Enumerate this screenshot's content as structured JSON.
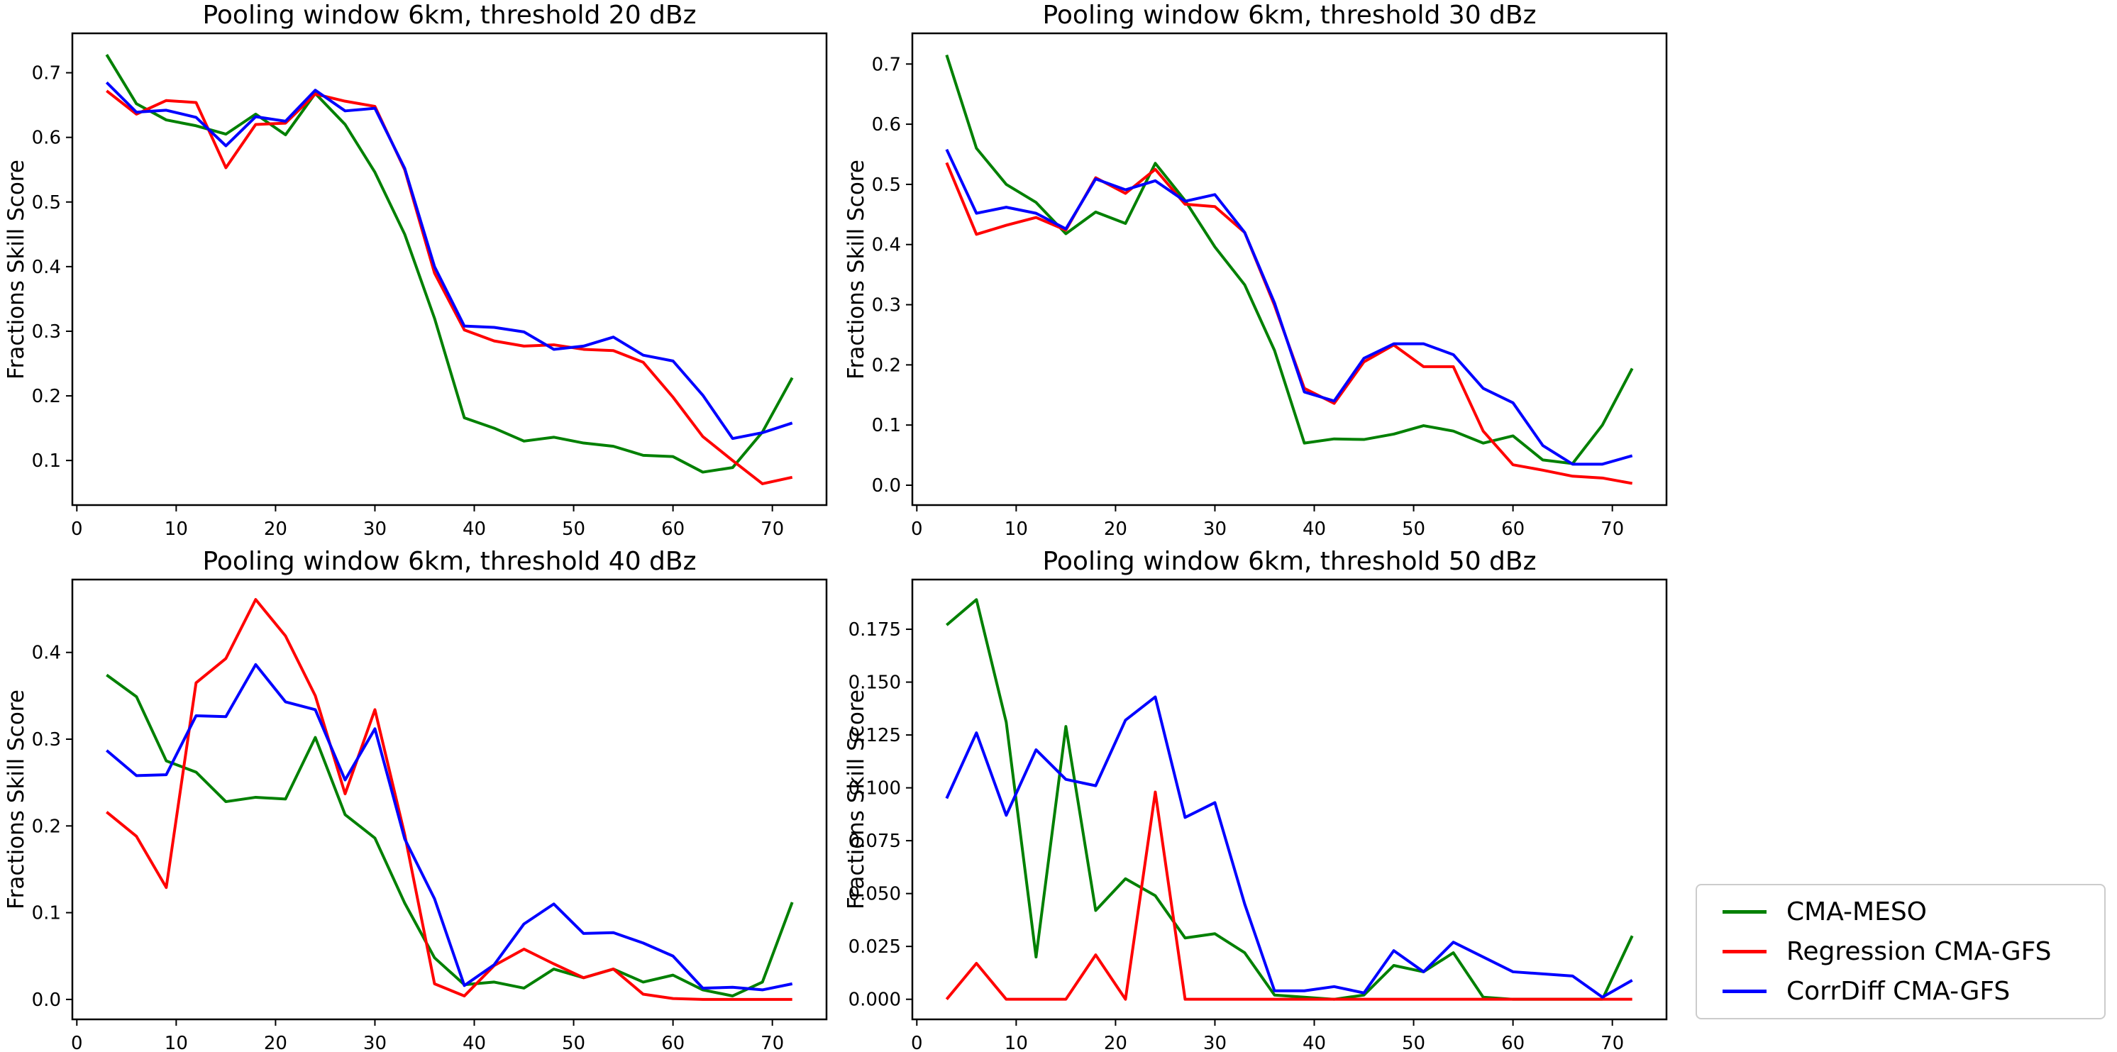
{
  "figure": {
    "background": "#ffffff",
    "ylabel": "Fractions Skill Score"
  },
  "legend": {
    "entries": [
      {
        "label": "CMA-MESO",
        "color": "#008000"
      },
      {
        "label": "Regression CMA-GFS",
        "color": "#ff0000"
      },
      {
        "label": "CorrDiff CMA-GFS",
        "color": "#0000ff"
      }
    ]
  },
  "chart_data": [
    {
      "type": "line",
      "title": "Pooling window 6km, threshold 20 dBz",
      "xlabel": "",
      "ylabel": "Fractions Skill Score",
      "x": [
        3,
        6,
        9,
        12,
        15,
        18,
        21,
        24,
        27,
        30,
        33,
        36,
        39,
        42,
        45,
        48,
        51,
        54,
        57,
        60,
        63,
        66,
        69,
        72
      ],
      "xlim": [
        -0.45,
        75.45
      ],
      "ylim": [
        0.031,
        0.761
      ],
      "xticks": [
        0,
        10,
        20,
        30,
        40,
        50,
        60,
        70
      ],
      "yticks": [
        0.1,
        0.2,
        0.3,
        0.4,
        0.5,
        0.6,
        0.7
      ],
      "xtick_decimals": 0,
      "ytick_decimals": 1,
      "grid": false,
      "series": [
        {
          "name": "CMA-MESO",
          "color": "#008000",
          "values": [
            0.728,
            0.652,
            0.627,
            0.618,
            0.605,
            0.636,
            0.604,
            0.668,
            0.62,
            0.546,
            0.45,
            0.32,
            0.166,
            0.15,
            0.13,
            0.136,
            0.127,
            0.122,
            0.108,
            0.106,
            0.082,
            0.089,
            0.144,
            0.228
          ]
        },
        {
          "name": "Regression CMA-GFS",
          "color": "#ff0000",
          "values": [
            0.672,
            0.636,
            0.657,
            0.654,
            0.553,
            0.62,
            0.622,
            0.667,
            0.656,
            0.648,
            0.55,
            0.39,
            0.302,
            0.285,
            0.277,
            0.279,
            0.272,
            0.27,
            0.252,
            0.198,
            0.137,
            0.1,
            0.064,
            0.074
          ]
        },
        {
          "name": "CorrDiff CMA-GFS",
          "color": "#0000ff",
          "values": [
            0.685,
            0.639,
            0.642,
            0.631,
            0.587,
            0.632,
            0.625,
            0.673,
            0.641,
            0.645,
            0.552,
            0.4,
            0.308,
            0.306,
            0.299,
            0.272,
            0.277,
            0.291,
            0.263,
            0.254,
            0.201,
            0.134,
            0.143,
            0.158
          ]
        }
      ]
    },
    {
      "type": "line",
      "title": "Pooling window 6km, threshold 30 dBz",
      "xlabel": "",
      "ylabel": "Fractions Skill Score",
      "x": [
        3,
        6,
        9,
        12,
        15,
        18,
        21,
        24,
        27,
        30,
        33,
        36,
        39,
        42,
        45,
        48,
        51,
        54,
        57,
        60,
        63,
        66,
        69,
        72
      ],
      "xlim": [
        -0.45,
        75.45
      ],
      "ylim": [
        -0.033,
        0.751
      ],
      "xticks": [
        0,
        10,
        20,
        30,
        40,
        50,
        60,
        70
      ],
      "yticks": [
        0.0,
        0.1,
        0.2,
        0.3,
        0.4,
        0.5,
        0.6,
        0.7
      ],
      "xtick_decimals": 0,
      "ytick_decimals": 1,
      "grid": false,
      "series": [
        {
          "name": "CMA-MESO",
          "color": "#008000",
          "values": [
            0.715,
            0.56,
            0.5,
            0.47,
            0.418,
            0.454,
            0.435,
            0.535,
            0.473,
            0.396,
            0.333,
            0.224,
            0.07,
            0.077,
            0.076,
            0.085,
            0.099,
            0.09,
            0.07,
            0.082,
            0.042,
            0.036,
            0.1,
            0.194
          ]
        },
        {
          "name": "Regression CMA-GFS",
          "color": "#ff0000",
          "values": [
            0.536,
            0.417,
            0.432,
            0.445,
            0.424,
            0.511,
            0.485,
            0.525,
            0.467,
            0.463,
            0.42,
            0.299,
            0.161,
            0.136,
            0.205,
            0.233,
            0.197,
            0.197,
            0.09,
            0.034,
            0.025,
            0.015,
            0.012,
            0.003
          ]
        },
        {
          "name": "CorrDiff CMA-GFS",
          "color": "#0000ff",
          "values": [
            0.558,
            0.452,
            0.462,
            0.452,
            0.426,
            0.509,
            0.491,
            0.506,
            0.472,
            0.483,
            0.42,
            0.303,
            0.155,
            0.14,
            0.211,
            0.235,
            0.235,
            0.217,
            0.161,
            0.137,
            0.066,
            0.035,
            0.035,
            0.049
          ]
        }
      ]
    },
    {
      "type": "line",
      "title": "Pooling window 6km, threshold 40 dBz",
      "xlabel": "",
      "ylabel": "Fractions Skill Score",
      "x": [
        3,
        6,
        9,
        12,
        15,
        18,
        21,
        24,
        27,
        30,
        33,
        36,
        39,
        42,
        45,
        48,
        51,
        54,
        57,
        60,
        63,
        66,
        69,
        72
      ],
      "xlim": [
        -0.45,
        75.45
      ],
      "ylim": [
        -0.023,
        0.484
      ],
      "xticks": [
        0,
        10,
        20,
        30,
        40,
        50,
        60,
        70
      ],
      "yticks": [
        0.0,
        0.1,
        0.2,
        0.3,
        0.4
      ],
      "xtick_decimals": 0,
      "ytick_decimals": 1,
      "grid": false,
      "series": [
        {
          "name": "CMA-MESO",
          "color": "#008000",
          "values": [
            0.374,
            0.349,
            0.275,
            0.262,
            0.228,
            0.233,
            0.231,
            0.302,
            0.213,
            0.186,
            0.111,
            0.048,
            0.017,
            0.02,
            0.013,
            0.035,
            0.025,
            0.035,
            0.02,
            0.028,
            0.011,
            0.004,
            0.02,
            0.112
          ]
        },
        {
          "name": "Regression CMA-GFS",
          "color": "#ff0000",
          "values": [
            0.216,
            0.188,
            0.129,
            0.365,
            0.393,
            0.461,
            0.419,
            0.35,
            0.237,
            0.334,
            0.19,
            0.018,
            0.004,
            0.039,
            0.058,
            0.041,
            0.025,
            0.035,
            0.006,
            0.001,
            0.0,
            0.0,
            0.0,
            0.0
          ]
        },
        {
          "name": "CorrDiff CMA-GFS",
          "color": "#0000ff",
          "values": [
            0.287,
            0.258,
            0.259,
            0.327,
            0.326,
            0.386,
            0.343,
            0.334,
            0.253,
            0.312,
            0.185,
            0.116,
            0.016,
            0.04,
            0.087,
            0.11,
            0.076,
            0.077,
            0.065,
            0.05,
            0.013,
            0.014,
            0.011,
            0.018
          ]
        }
      ]
    },
    {
      "type": "line",
      "title": "Pooling window 6km, threshold 50 dBz",
      "xlabel": "",
      "ylabel": "Fractions Skill Score",
      "x": [
        3,
        6,
        9,
        12,
        15,
        18,
        21,
        24,
        27,
        30,
        33,
        36,
        39,
        42,
        45,
        48,
        51,
        54,
        57,
        60,
        63,
        66,
        69,
        72
      ],
      "xlim": [
        -0.45,
        75.45
      ],
      "ylim": [
        -0.0095,
        0.1985
      ],
      "xticks": [
        0,
        10,
        20,
        30,
        40,
        50,
        60,
        70
      ],
      "yticks": [
        0.0,
        0.025,
        0.05,
        0.075,
        0.1,
        0.125,
        0.15,
        0.175
      ],
      "xtick_decimals": 0,
      "ytick_decimals": 3,
      "grid": false,
      "series": [
        {
          "name": "CMA-MESO",
          "color": "#008000",
          "values": [
            0.177,
            0.189,
            0.131,
            0.02,
            0.129,
            0.042,
            0.057,
            0.049,
            0.029,
            0.031,
            0.022,
            0.002,
            0.001,
            0.0,
            0.002,
            0.016,
            0.013,
            0.022,
            0.001,
            0.0,
            0.0,
            0.0,
            0.0,
            0.03
          ]
        },
        {
          "name": "Regression CMA-GFS",
          "color": "#ff0000",
          "values": [
            0.0,
            0.017,
            0.0,
            0.0,
            0.0,
            0.021,
            0.0,
            0.098,
            0.0,
            0.0,
            0.0,
            0.0,
            0.0,
            0.0,
            0.0,
            0.0,
            0.0,
            0.0,
            0.0,
            0.0,
            0.0,
            0.0,
            0.0,
            0.0
          ]
        },
        {
          "name": "CorrDiff CMA-GFS",
          "color": "#0000ff",
          "values": [
            0.095,
            0.126,
            0.087,
            0.118,
            0.104,
            0.101,
            0.132,
            0.143,
            0.086,
            0.093,
            0.045,
            0.004,
            0.004,
            0.006,
            0.003,
            0.023,
            0.013,
            0.027,
            0.02,
            0.013,
            0.012,
            0.011,
            0.001,
            0.009
          ]
        }
      ]
    }
  ]
}
